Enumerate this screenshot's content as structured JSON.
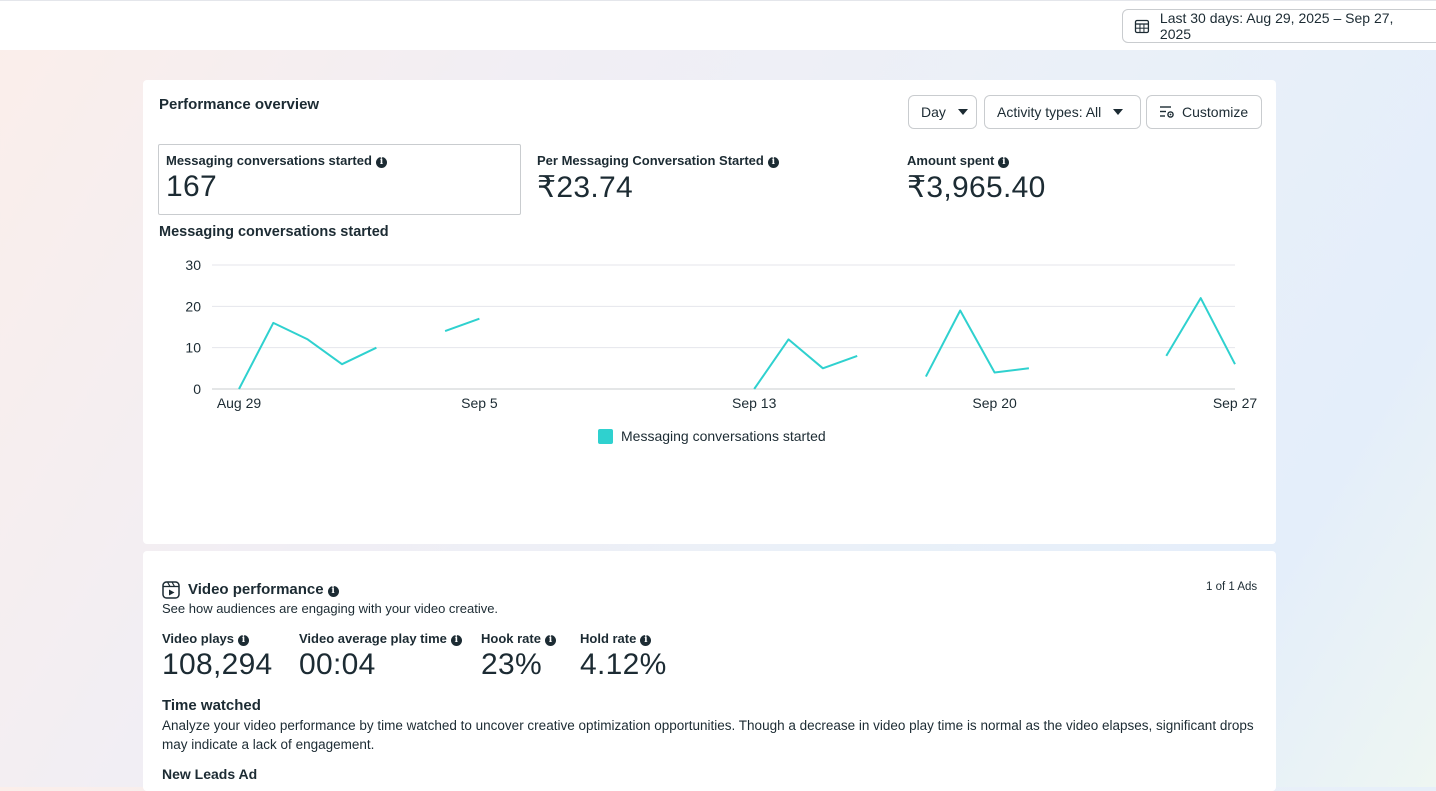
{
  "topbar": {
    "date_range_label": "Last 30 days: Aug 29, 2025 – Sep 27, 2025"
  },
  "performance": {
    "title": "Performance overview",
    "controls": {
      "granularity": "Day",
      "activity_types": "Activity types: All",
      "customize": "Customize"
    },
    "metrics": [
      {
        "label": "Messaging conversations started",
        "value": "167"
      },
      {
        "label": "Per Messaging Conversation Started",
        "value": "₹23.74"
      },
      {
        "label": "Amount spent",
        "value": "₹3,965.40"
      }
    ],
    "chart_title": "Messaging conversations started"
  },
  "chart_data": {
    "type": "line",
    "title": "Messaging conversations started",
    "xlabel": "",
    "ylabel": "",
    "ylim": [
      0,
      30
    ],
    "y_ticks": [
      "30",
      "20",
      "10",
      "0"
    ],
    "x_tick_labels": [
      "Aug 29",
      "Sep 5",
      "Sep 13",
      "Sep 20",
      "Sep 27"
    ],
    "x": [
      "Aug 29",
      "Aug 30",
      "Aug 31",
      "Sep 1",
      "Sep 2",
      "Sep 3",
      "Sep 4",
      "Sep 5",
      "Sep 6",
      "Sep 7",
      "Sep 8",
      "Sep 9",
      "Sep 10",
      "Sep 11",
      "Sep 12",
      "Sep 13",
      "Sep 14",
      "Sep 15",
      "Sep 16",
      "Sep 17",
      "Sep 18",
      "Sep 19",
      "Sep 20",
      "Sep 21",
      "Sep 22",
      "Sep 23",
      "Sep 24",
      "Sep 25",
      "Sep 26",
      "Sep 27"
    ],
    "series": [
      {
        "name": "Messaging conversations started",
        "color": "#2fd1cf",
        "values": [
          0,
          16,
          12,
          6,
          10,
          null,
          14,
          17,
          null,
          null,
          null,
          null,
          null,
          null,
          null,
          0,
          12,
          5,
          8,
          null,
          3,
          19,
          4,
          5,
          null,
          null,
          null,
          8,
          22,
          6
        ]
      }
    ],
    "grid": true,
    "legend": "bottom-center"
  },
  "video": {
    "title": "Video performance",
    "subtitle": "See how audiences are engaging with your video creative.",
    "ads_count": "1 of 1 Ads",
    "metrics": [
      {
        "label": "Video plays",
        "value": "108,294"
      },
      {
        "label": "Video average play time",
        "value": "00:04"
      },
      {
        "label": "Hook rate",
        "value": "23%"
      },
      {
        "label": "Hold rate",
        "value": "4.12%"
      }
    ],
    "time_watched_title": "Time watched",
    "time_watched_desc": "Analyze your video performance by time watched to uncover creative optimization opportunities. Though a decrease in video play time is normal as the video elapses, significant drops may indicate a lack of engagement.",
    "ad_name": "New Leads Ad"
  },
  "icons": {
    "calendar": "calendar-icon",
    "info": "info-icon",
    "customize": "customize-icon",
    "video": "video-icon"
  }
}
